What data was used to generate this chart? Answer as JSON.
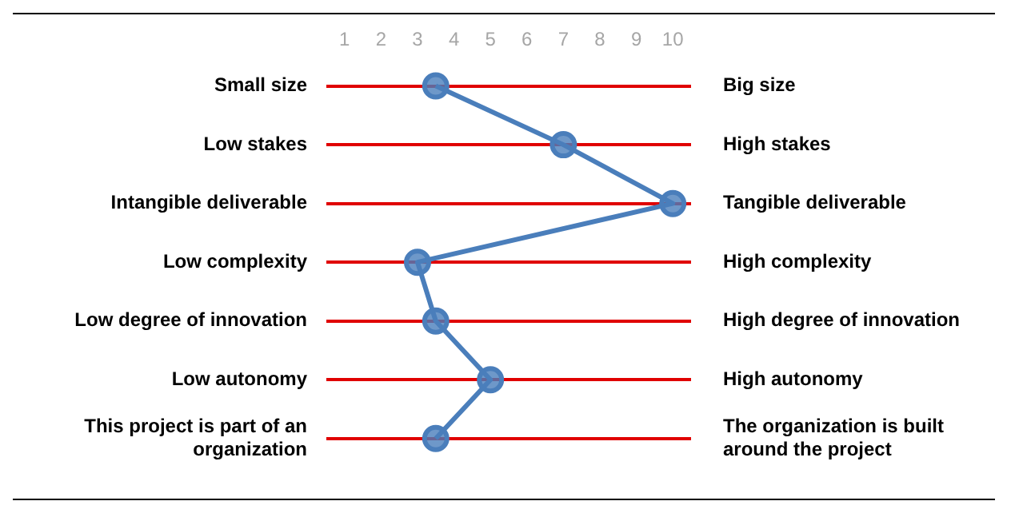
{
  "chart_data": {
    "type": "line",
    "orientation": "horizontal",
    "categories": [
      "Small size",
      "Low stakes",
      "Intangible deliverable",
      "Low complexity",
      "Low degree of innovation",
      "Low autonomy",
      "This project is part of an organization"
    ],
    "y2_categories": [
      "Big size",
      "High stakes",
      "Tangible deliverable",
      "High complexity",
      "High degree of innovation",
      "High autonomy",
      "The organization is built around the project"
    ],
    "values": [
      3.5,
      7,
      10,
      3,
      3.5,
      5,
      3.5
    ],
    "color": "#4a7ebb",
    "xlim": [
      0.5,
      10.5
    ],
    "xticks": [
      1,
      2,
      3,
      4,
      5,
      6,
      7,
      8,
      9,
      10
    ],
    "grid": "y",
    "marker": "circle"
  }
}
